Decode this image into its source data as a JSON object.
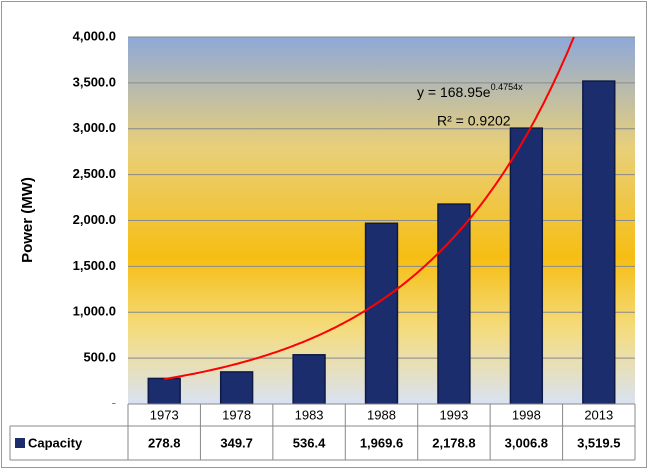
{
  "chart_data": {
    "type": "bar",
    "y_label": "Power (MW)",
    "categories": [
      "1973",
      "1978",
      "1983",
      "1988",
      "1993",
      "1998",
      "2013"
    ],
    "series": [
      {
        "name": "Capacity",
        "color": "#1c2d6e",
        "values": [
          278.8,
          349.7,
          536.4,
          1969.6,
          2178.8,
          3006.8,
          3519.5
        ],
        "value_labels": [
          "278.8",
          "349.7",
          "536.4",
          "1,969.6",
          "2,178.8",
          "3,006.8",
          "3,519.5"
        ]
      }
    ],
    "ylim": [
      0,
      4000
    ],
    "yticks": [
      {
        "value": 0,
        "label": "-"
      },
      {
        "value": 500,
        "label": "500.0"
      },
      {
        "value": 1000,
        "label": "1,000.0"
      },
      {
        "value": 1500,
        "label": "1,500.0"
      },
      {
        "value": 2000,
        "label": "2,000.0"
      },
      {
        "value": 2500,
        "label": "2,500.0"
      },
      {
        "value": 3000,
        "label": "3,000.0"
      },
      {
        "value": 3500,
        "label": "3,500.0"
      },
      {
        "value": 4000,
        "label": "4,000.0"
      }
    ],
    "grid": true,
    "trendline": {
      "a": 168.95,
      "b": 0.4754,
      "color": "#ff0000",
      "equation": "y = 168.95e",
      "exponent": "0.4754x",
      "r_squared": "R² = 0.9202"
    }
  }
}
